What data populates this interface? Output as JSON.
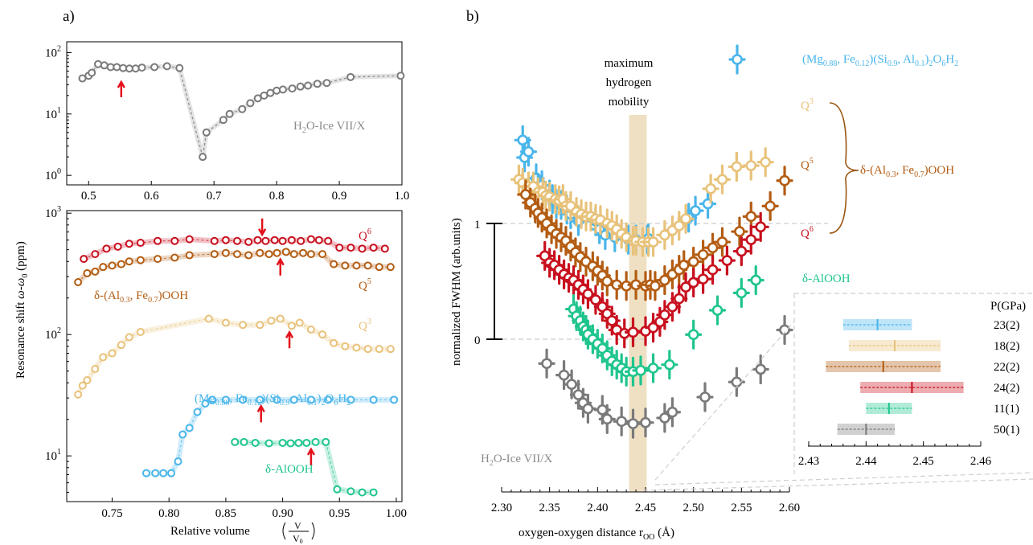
{
  "panel_a_label": "a)",
  "panel_b_label": "b)",
  "colors": {
    "ice": "#7a7a7a",
    "q6": "#c8101e",
    "q5": "#b35c12",
    "q3": "#e8c27a",
    "mg": "#49b5ea",
    "aloo": "#1fc58d",
    "red_arrow": "#e3121c",
    "band": "#ead5b0",
    "brace": "#9a5612"
  },
  "chart_data": [
    {
      "type": "scatter",
      "panel": "a-top",
      "ylabel_pre": "Resonance shift ",
      "ylabel_mid": "ω-ω",
      "ylabel_sub": "0",
      "ylabel_post": " (ppm)",
      "xlim": [
        0.465,
        1.0
      ],
      "ylim": [
        0.7,
        150
      ],
      "yscale": "log",
      "xticks": [
        "0.5",
        "0.6",
        "0.7",
        "0.8",
        "0.9",
        "1.0"
      ],
      "xtick_values": [
        0.5,
        0.6,
        0.7,
        0.8,
        0.9,
        1.0
      ],
      "yticks": [
        {
          "base": "10",
          "exp": "0"
        },
        {
          "base": "10",
          "exp": "1"
        },
        {
          "base": "10",
          "exp": "2"
        }
      ],
      "ytick_values": [
        1,
        10,
        100
      ],
      "series": [
        {
          "name": "H₂O-Ice VII/X",
          "color": "#7a7a7a",
          "x": [
            0.49,
            0.5,
            0.505,
            0.515,
            0.525,
            0.535,
            0.545,
            0.555,
            0.565,
            0.575,
            0.585,
            0.605,
            0.625,
            0.645,
            0.682,
            0.688,
            0.715,
            0.725,
            0.745,
            0.758,
            0.77,
            0.78,
            0.79,
            0.8,
            0.81,
            0.825,
            0.838,
            0.85,
            0.865,
            0.88,
            0.918,
            0.998
          ],
          "y": [
            38,
            42,
            47,
            65,
            62,
            58,
            58,
            56,
            55,
            55,
            57,
            58,
            60,
            56,
            2,
            5,
            8,
            10,
            12,
            15,
            18,
            20,
            22,
            24,
            25,
            26,
            28,
            29,
            31,
            32,
            40,
            42
          ],
          "arrow_x": 0.552,
          "label_base": "H",
          "label_sub": "2",
          "label_rest": "O-Ice VII/X"
        }
      ]
    },
    {
      "type": "scatter",
      "panel": "a-bottom",
      "xlabel": "Relative volume",
      "xlabel_num": "V",
      "xlabel_den": "V",
      "xlabel_den_sub": "0",
      "xlim": [
        0.71,
        1.005
      ],
      "ylim": [
        4.2,
        1050
      ],
      "yscale": "log",
      "xticks": [
        "0.75",
        "0.80",
        "0.85",
        "0.90",
        "0.95",
        "1.00"
      ],
      "xtick_values": [
        0.75,
        0.8,
        0.85,
        0.9,
        0.95,
        1.0
      ],
      "yticks": [
        {
          "base": "10",
          "exp": "1"
        },
        {
          "base": "10",
          "exp": "2"
        },
        {
          "base": "10",
          "exp": "3"
        }
      ],
      "ytick_values": [
        10,
        100,
        1000
      ],
      "series": [
        {
          "name": "Q⁶",
          "label_base": "Q",
          "label_sup": "6",
          "color": "#c8101e",
          "x": [
            0.725,
            0.735,
            0.745,
            0.755,
            0.765,
            0.775,
            0.79,
            0.805,
            0.818,
            0.84,
            0.85,
            0.86,
            0.87,
            0.878,
            0.885,
            0.893,
            0.9,
            0.908,
            0.916,
            0.925,
            0.932,
            0.94,
            0.95,
            0.96,
            0.97,
            0.98,
            0.99
          ],
          "y": [
            420,
            460,
            510,
            530,
            560,
            570,
            590,
            590,
            610,
            590,
            600,
            590,
            580,
            600,
            590,
            600,
            590,
            600,
            590,
            610,
            600,
            590,
            520,
            520,
            510,
            520,
            510
          ],
          "arrow_x": 0.882
        },
        {
          "name": "Q⁵",
          "label_base": "Q",
          "label_sup": "5",
          "color": "#b35c12",
          "x": [
            0.72,
            0.728,
            0.735,
            0.742,
            0.75,
            0.758,
            0.765,
            0.775,
            0.79,
            0.805,
            0.818,
            0.84,
            0.85,
            0.86,
            0.87,
            0.88,
            0.888,
            0.895,
            0.903,
            0.91,
            0.918,
            0.925,
            0.935,
            0.945,
            0.955,
            0.965,
            0.975,
            0.985,
            0.995
          ],
          "y": [
            270,
            320,
            330,
            360,
            370,
            380,
            400,
            410,
            420,
            430,
            450,
            460,
            470,
            460,
            450,
            470,
            460,
            470,
            480,
            460,
            470,
            460,
            460,
            380,
            370,
            370,
            370,
            360,
            360
          ],
          "arrow_x": 0.898
        },
        {
          "name": "Q³",
          "label_base": "Q",
          "label_sup": "3",
          "color": "#e8c27a",
          "x": [
            0.72,
            0.724,
            0.728,
            0.735,
            0.742,
            0.75,
            0.758,
            0.765,
            0.775,
            0.835,
            0.85,
            0.865,
            0.88,
            0.89,
            0.898,
            0.908,
            0.915,
            0.925,
            0.935,
            0.945,
            0.955,
            0.965,
            0.975,
            0.985,
            0.995
          ],
          "y": [
            32,
            38,
            42,
            52,
            65,
            70,
            82,
            95,
            105,
            135,
            125,
            120,
            120,
            130,
            135,
            118,
            125,
            110,
            100,
            85,
            80,
            78,
            76,
            76,
            76
          ],
          "arrow_x": 0.906
        },
        {
          "name": "(Mg0.88, Fe0.12)(Si0.9, Al0.1)2O6H2",
          "color": "#49b5ea",
          "x": [
            0.78,
            0.788,
            0.795,
            0.802,
            0.808,
            0.812,
            0.818,
            0.825,
            0.832,
            0.838,
            0.85,
            0.865,
            0.88,
            0.895,
            0.91,
            0.925,
            0.94,
            0.96,
            0.98,
            0.998
          ],
          "y": [
            7.2,
            7.2,
            7.2,
            7.2,
            9,
            15,
            17,
            23,
            27,
            29,
            29,
            29,
            29,
            29,
            29,
            29,
            29,
            29,
            29,
            29
          ],
          "arrow_x": 0.881
        },
        {
          "name": "δ-AlOOH",
          "color": "#1fc58d",
          "x": [
            0.858,
            0.866,
            0.876,
            0.888,
            0.9,
            0.907,
            0.914,
            0.921,
            0.929,
            0.938,
            0.948,
            0.96,
            0.97,
            0.98
          ],
          "y": [
            13,
            13,
            12.8,
            12.7,
            12.8,
            12.7,
            12.8,
            12.8,
            13,
            13,
            5.3,
            5.1,
            5.0,
            5.0
          ],
          "arrow_x": 0.925
        }
      ],
      "label_mg": {
        "pre": "(Mg",
        "s1": "0.88",
        "m1": ", Fe",
        "s2": "0.12",
        "m2": ")(Si",
        "s3": "0.9",
        "m3": ", Al",
        "s4": "0.1",
        "m4": ")",
        "s5": "2",
        "m5": "O",
        "s6": "6",
        "m6": "H",
        "s7": "2"
      },
      "label_aloo": "δ-AlOOH",
      "label_delta": {
        "pre": "δ-(Al",
        "s1": "0.3",
        "m1": ", Fe",
        "s2": "0.7",
        "m2": ")OOH"
      }
    },
    {
      "type": "scatter",
      "panel": "b",
      "xlabel_pre": "oxygen-oxygen distance r",
      "xlabel_sub": "OO",
      "xlabel_post": " (Å)",
      "ylabel": "normalized FWHM (arb.units)",
      "xlim": [
        2.3,
        2.6
      ],
      "xticks": [
        "2.30",
        "2.35",
        "2.40",
        "2.45",
        "2.50",
        "2.55",
        "2.60"
      ],
      "xtick_values": [
        2.3,
        2.35,
        2.4,
        2.45,
        2.5,
        2.55,
        2.6
      ],
      "scale_ticks": [
        "1",
        "0"
      ],
      "annotation": [
        "maximum",
        "hydrogen",
        "mobility"
      ],
      "band_center": 2.442,
      "series": [
        {
          "name": "(Mg0.88, Fe0.12)(Si0.9, Al0.1)2O6H2",
          "color": "#49b5ea",
          "x": [
            2.322,
            2.324,
            2.328,
            2.336,
            2.338,
            2.342,
            2.35,
            2.353,
            2.357,
            2.362,
            2.368,
            2.372,
            2.38,
            2.398,
            2.402,
            2.408,
            2.418,
            2.432,
            2.44,
            2.452,
            2.453,
            2.495,
            2.502,
            2.515
          ],
          "y": [
            1.72,
            1.57,
            1.62,
            1.39,
            1.31,
            1.33,
            1.25,
            1.21,
            1.17,
            1.16,
            1.12,
            1.08,
            1.02,
            1.02,
            0.95,
            0.9,
            0.88,
            0.86,
            0.86,
            0.86,
            0.87,
            1.05,
            1.11,
            1.17
          ]
        },
        {
          "name": "Q³",
          "color": "#e8c27a",
          "x": [
            2.318,
            2.322,
            2.328,
            2.333,
            2.338,
            2.343,
            2.346,
            2.35,
            2.356,
            2.36,
            2.364,
            2.367,
            2.372,
            2.378,
            2.383,
            2.388,
            2.393,
            2.398,
            2.403,
            2.41,
            2.415,
            2.42,
            2.425,
            2.43,
            2.437,
            2.44,
            2.447,
            2.453,
            2.458,
            2.47,
            2.478,
            2.485,
            2.492,
            2.518,
            2.53,
            2.545,
            2.56,
            2.575
          ],
          "y": [
            1.38,
            1.35,
            1.32,
            1.32,
            1.27,
            1.27,
            1.24,
            1.23,
            1.21,
            1.2,
            1.21,
            1.15,
            1.15,
            1.1,
            1.08,
            1.06,
            1.06,
            1.04,
            1.03,
            1.0,
            0.98,
            0.95,
            0.91,
            0.88,
            0.85,
            0.85,
            0.84,
            0.84,
            0.84,
            0.9,
            0.94,
            0.98,
            1.04,
            1.3,
            1.38,
            1.49,
            1.5,
            1.53
          ]
        },
        {
          "name": "Q⁵",
          "color": "#b35c12",
          "x": [
            2.325,
            2.33,
            2.335,
            2.338,
            2.342,
            2.347,
            2.352,
            2.357,
            2.362,
            2.367,
            2.372,
            2.377,
            2.382,
            2.388,
            2.395,
            2.4,
            2.405,
            2.41,
            2.42,
            2.43,
            2.44,
            2.45,
            2.455,
            2.46,
            2.47,
            2.478,
            2.485,
            2.49,
            2.5,
            2.51,
            2.52,
            2.53,
            2.548,
            2.56,
            2.58,
            2.595
          ],
          "y": [
            1.25,
            1.18,
            1.13,
            1.09,
            1.05,
            1.0,
            0.95,
            0.91,
            0.88,
            0.85,
            0.8,
            0.75,
            0.71,
            0.67,
            0.63,
            0.59,
            0.55,
            0.5,
            0.47,
            0.46,
            0.47,
            0.46,
            0.47,
            0.46,
            0.51,
            0.56,
            0.6,
            0.64,
            0.67,
            0.73,
            0.79,
            0.84,
            0.93,
            1.06,
            1.15,
            1.37
          ]
        },
        {
          "name": "Q⁶",
          "color": "#c8101e",
          "x": [
            2.345,
            2.35,
            2.355,
            2.36,
            2.365,
            2.37,
            2.375,
            2.38,
            2.385,
            2.39,
            2.398,
            2.405,
            2.41,
            2.415,
            2.42,
            2.428,
            2.437,
            2.45,
            2.458,
            2.465,
            2.47,
            2.478,
            2.485,
            2.492,
            2.5,
            2.51,
            2.52,
            2.535,
            2.55,
            2.56,
            2.57
          ],
          "y": [
            0.72,
            0.66,
            0.64,
            0.6,
            0.56,
            0.53,
            0.51,
            0.47,
            0.43,
            0.39,
            0.34,
            0.28,
            0.22,
            0.16,
            0.08,
            0.05,
            0.06,
            0.07,
            0.1,
            0.15,
            0.21,
            0.28,
            0.35,
            0.45,
            0.49,
            0.52,
            0.6,
            0.68,
            0.76,
            0.86,
            0.97
          ]
        },
        {
          "name": "δ-AlOOH",
          "color": "#1fc58d",
          "x": [
            2.375,
            2.378,
            2.382,
            2.385,
            2.388,
            2.39,
            2.395,
            2.4,
            2.405,
            2.41,
            2.415,
            2.42,
            2.425,
            2.43,
            2.437,
            2.445,
            2.458,
            2.475,
            2.5,
            2.525,
            2.55,
            2.565
          ],
          "y": [
            0.26,
            0.2,
            0.16,
            0.11,
            0.08,
            0.04,
            0.0,
            -0.04,
            -0.08,
            -0.14,
            -0.19,
            -0.22,
            -0.25,
            -0.28,
            -0.28,
            -0.27,
            -0.25,
            -0.22,
            0.04,
            0.25,
            0.4,
            0.51
          ]
        },
        {
          "name": "H₂O-Ice VII/X",
          "color": "#7a7a7a",
          "x": [
            2.347,
            2.365,
            2.373,
            2.38,
            2.385,
            2.39,
            2.405,
            2.41,
            2.425,
            2.437,
            2.45,
            2.47,
            2.478,
            2.512,
            2.545,
            2.57,
            2.595
          ],
          "y": [
            -0.21,
            -0.31,
            -0.39,
            -0.48,
            -0.55,
            -0.6,
            -0.61,
            -0.69,
            -0.71,
            -0.73,
            -0.72,
            -0.68,
            -0.63,
            -0.5,
            -0.37,
            -0.26,
            0.08
          ]
        }
      ]
    },
    {
      "type": "scatter",
      "panel": "b-inset",
      "header": "P(GPa)",
      "xlim": [
        2.43,
        2.46
      ],
      "xticks": [
        "2.43",
        "2.44",
        "2.45",
        "2.46"
      ],
      "xtick_values": [
        2.43,
        2.44,
        2.45,
        2.46
      ],
      "rows": [
        {
          "color": "#49b5ea",
          "center": 2.442,
          "low": 2.436,
          "high": 2.448,
          "pressure": "23(2)"
        },
        {
          "color": "#e8c27a",
          "center": 2.445,
          "low": 2.437,
          "high": 2.453,
          "pressure": "18(2)"
        },
        {
          "color": "#b35c12",
          "center": 2.443,
          "low": 2.433,
          "high": 2.453,
          "pressure": "22(2)"
        },
        {
          "color": "#c8101e",
          "center": 2.448,
          "low": 2.439,
          "high": 2.457,
          "pressure": "24(2)"
        },
        {
          "color": "#1fc58d",
          "center": 2.444,
          "low": 2.44,
          "high": 2.448,
          "pressure": "11(1)"
        },
        {
          "color": "#7a7a7a",
          "center": 2.44,
          "low": 2.435,
          "high": 2.445,
          "pressure": "50(1)"
        }
      ]
    }
  ]
}
